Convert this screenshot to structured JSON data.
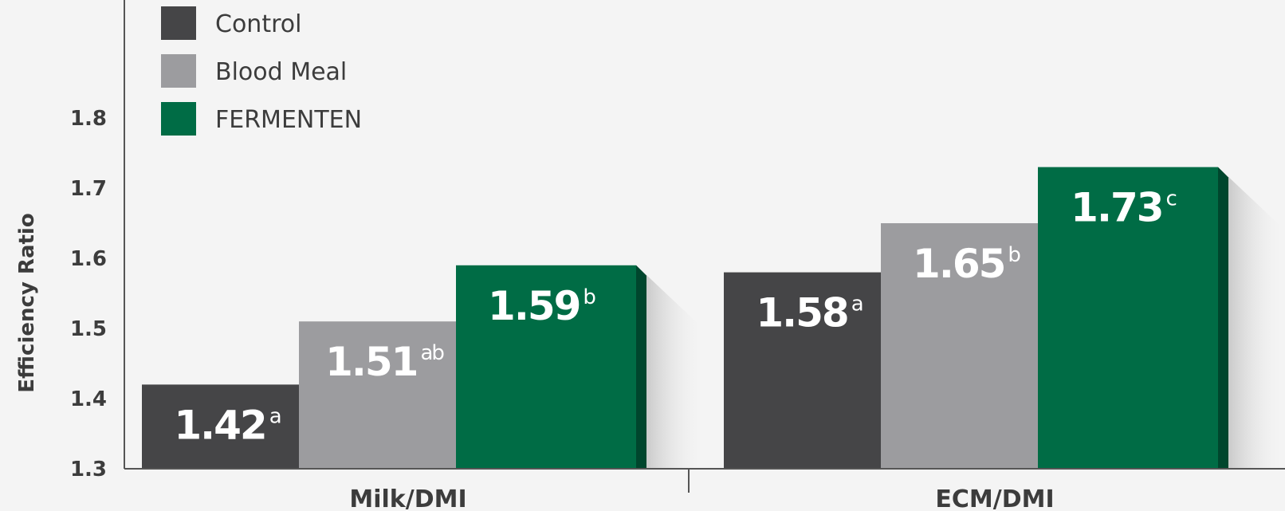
{
  "chart_data": {
    "type": "bar",
    "ylabel": "Efficiency Ratio",
    "xlabel": "",
    "ylim": [
      1.3,
      1.85
    ],
    "yticks": [
      "1.3",
      "1.4",
      "1.5",
      "1.6",
      "1.7",
      "1.8"
    ],
    "categories": [
      "Milk/DMI",
      "ECM/DMI"
    ],
    "legend_position": "top-left",
    "grid": false,
    "series": [
      {
        "name": "Control",
        "color": "#454547",
        "values": [
          1.42,
          1.58
        ],
        "labels": [
          "1.42",
          "1.58"
        ],
        "superscripts": [
          "a",
          "a"
        ]
      },
      {
        "name": "Blood Meal",
        "color": "#9c9c9f",
        "values": [
          1.51,
          1.65
        ],
        "labels": [
          "1.51",
          "1.65"
        ],
        "superscripts": [
          "ab",
          "b"
        ]
      },
      {
        "name": "FERMENTEN",
        "color": "#006c45",
        "values": [
          1.59,
          1.73
        ],
        "labels": [
          "1.59",
          "1.73"
        ],
        "superscripts": [
          "b",
          "c"
        ]
      }
    ]
  }
}
